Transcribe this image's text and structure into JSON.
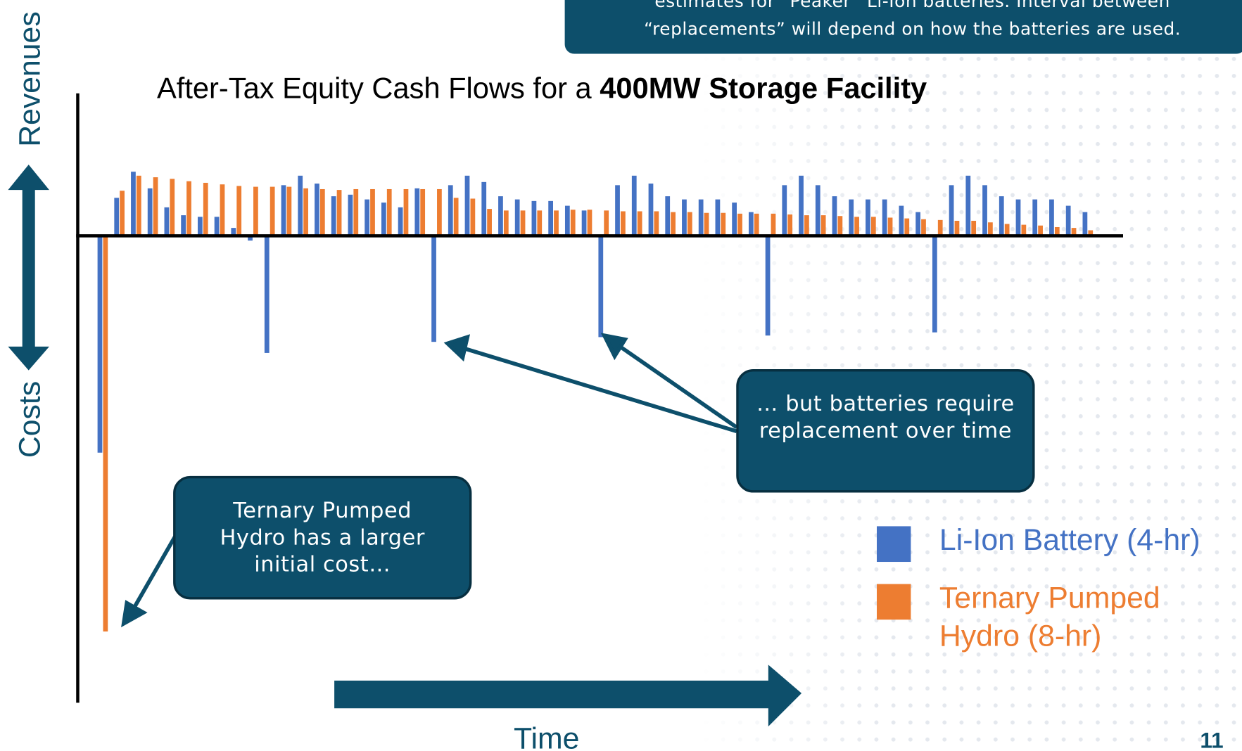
{
  "chart_data": {
    "type": "bar",
    "note_lines": [
      "estimates for “Peaker” Li-Ion batteries. Interval between",
      "“replacements” will depend on how the batteries are used."
    ],
    "title": "After-Tax Equity Cash Flows for a",
    "title_bold": "400MW Storage Facility",
    "y_label_top": "Revenues",
    "y_label_bottom": "Costs",
    "x_label": "Time",
    "annotations": [
      "… but batteries require replacement over time",
      "Ternary Pumped Hydro has a larger initial cost…"
    ],
    "ylim": [
      -590,
      180
    ],
    "series": [
      {
        "name": "Li-Ion Battery (4-hr)",
        "color": "#4472c4",
        "values": [
          -274,
          48,
          81,
          60,
          36,
          26,
          24,
          24,
          10,
          -6,
          -148,
          64,
          76,
          66,
          50,
          52,
          46,
          42,
          36,
          60,
          -134,
          64,
          76,
          68,
          50,
          46,
          44,
          44,
          38,
          32,
          -128,
          64,
          76,
          66,
          50,
          46,
          46,
          46,
          42,
          30,
          -126,
          64,
          76,
          64,
          50,
          46,
          46,
          46,
          38,
          30,
          -122,
          64,
          76,
          64,
          50,
          46,
          46,
          46,
          38,
          30
        ]
      },
      {
        "name": "Ternary Pumped Hydro (8-hr)",
        "color": "#ed7d31",
        "values": [
          -500,
          57,
          76,
          74,
          72,
          69,
          67,
          65,
          63,
          62,
          62,
          62,
          60,
          59,
          58,
          59,
          59,
          59,
          59,
          59,
          59,
          48,
          47,
          34,
          32,
          32,
          32,
          32,
          33,
          33,
          32,
          31,
          31,
          31,
          30,
          30,
          29,
          29,
          28,
          28,
          28,
          27,
          26,
          26,
          25,
          24,
          24,
          23,
          22,
          21,
          20,
          19,
          19,
          17,
          15,
          14,
          13,
          11,
          10,
          7
        ]
      }
    ]
  },
  "slide_number": 11
}
